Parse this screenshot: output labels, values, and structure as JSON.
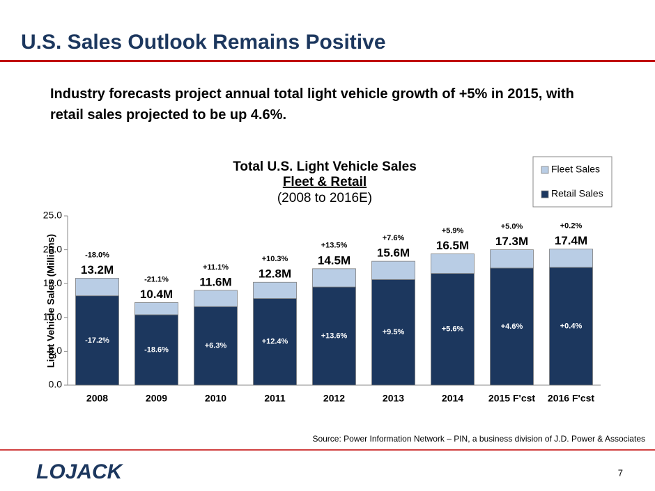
{
  "slide_title": "U.S. Sales Outlook Remains Positive",
  "intro": "Industry forecasts project annual total light vehicle growth of +5% in 2015, with retail sales projected to be up 4.6%.",
  "source": "Source: Power Information Network – PIN, a business division of J.D. Power & Associates",
  "logo": "LOJACK",
  "page_number": "7",
  "chart_data": {
    "type": "stacked_bar",
    "title": "Total U.S. Light Vehicle Sales",
    "subtitle": "Fleet & Retail",
    "period": "(2008 to 2016E)",
    "y_label": "Light Vehicle Sales (Millions)",
    "categories": [
      "2008",
      "2009",
      "2010",
      "2011",
      "2012",
      "2013",
      "2014",
      "2015 F'cst",
      "2016 F'cst"
    ],
    "series": [
      {
        "name": "Fleet Sales",
        "color": "#b9cde5",
        "values": [
          2.6,
          1.8,
          2.4,
          2.4,
          2.7,
          2.7,
          2.9,
          2.7,
          2.7
        ]
      },
      {
        "name": "Retail Sales",
        "color": "#1c375e",
        "values": [
          13.2,
          10.4,
          11.6,
          12.8,
          14.5,
          15.6,
          16.5,
          17.3,
          17.4
        ],
        "value_labels": [
          "13.2M",
          "10.4M",
          "11.6M",
          "12.8M",
          "14.5M",
          "15.6M",
          "16.5M",
          "17.3M",
          "17.4M"
        ]
      }
    ],
    "retail_change": [
      "-17.2%",
      "-18.6%",
      "+6.3%",
      "+12.4%",
      "+13.6%",
      "+9.5%",
      "+5.6%",
      "+4.6%",
      "+0.4%"
    ],
    "total_change": [
      "-18.0%",
      "-21.1%",
      "+11.1%",
      "+10.3%",
      "+13.5%",
      "+7.6%",
      "+5.9%",
      "+5.0%",
      "+0.2%"
    ],
    "ylim": [
      0,
      25
    ],
    "yticks": [
      {
        "value": 0,
        "label": "0.0"
      },
      {
        "value": 5,
        "label": "5.0"
      },
      {
        "value": 10,
        "label": "10.0"
      },
      {
        "value": 15,
        "label": "15.0"
      },
      {
        "value": 20,
        "label": "20.0"
      },
      {
        "value": 25,
        "label": "25.0"
      }
    ],
    "legend": "top-right"
  }
}
